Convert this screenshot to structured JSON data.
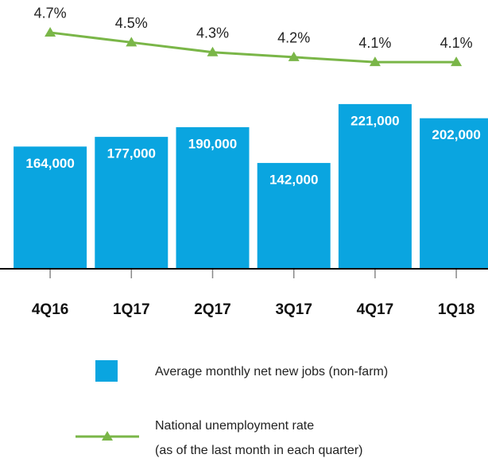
{
  "chart_data": {
    "type": "bar_line",
    "categories": [
      "4Q16",
      "1Q17",
      "2Q17",
      "3Q17",
      "4Q17",
      "1Q18"
    ],
    "series": [
      {
        "name": "Average monthly net new jobs (non-farm)",
        "type": "bar",
        "color": "#0aa5e0",
        "values": [
          164000,
          177000,
          190000,
          142000,
          221000,
          202000
        ],
        "value_labels": [
          "164,000",
          "177,000",
          "190,000",
          "142,000",
          "221,000",
          "202,000"
        ]
      },
      {
        "name": [
          "National unemployment rate",
          "(as of the last month in each quarter)"
        ],
        "type": "line",
        "axis": "y2",
        "color": "#7ab648",
        "values": [
          4.7,
          4.5,
          4.3,
          4.2,
          4.1,
          4.1
        ],
        "value_labels": [
          "4.7%",
          "4.5%",
          "4.3%",
          "4.2%",
          "4.1%",
          "4.1%"
        ]
      }
    ],
    "ylim": [
      0,
      350000
    ],
    "y2lim": [
      -0.1,
      5.2
    ]
  }
}
